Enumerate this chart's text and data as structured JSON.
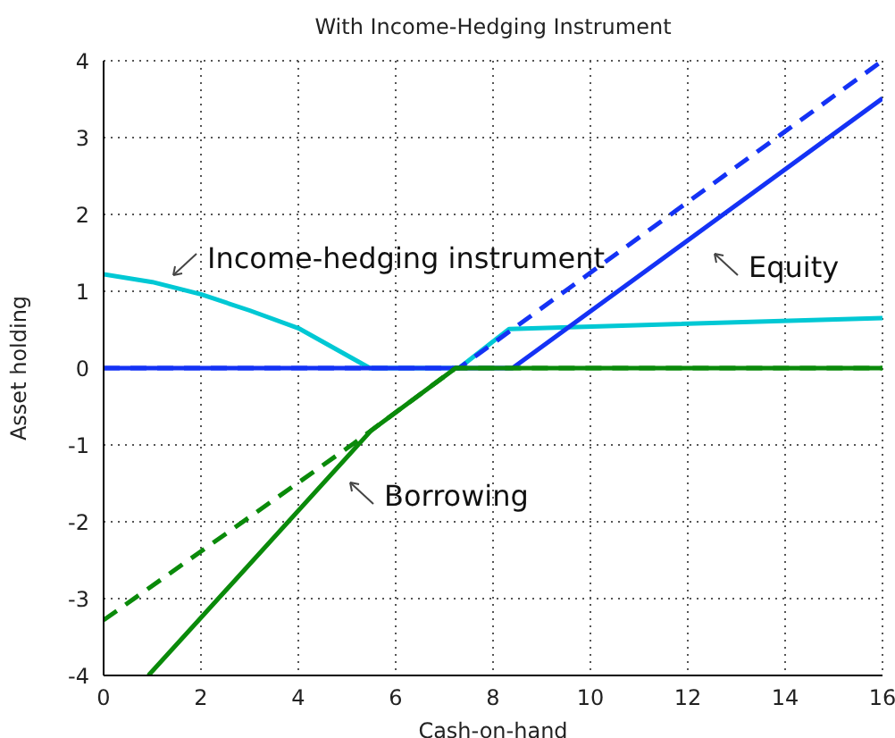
{
  "chart_data": {
    "type": "line",
    "title": "With Income-Hedging Instrument",
    "xlabel": "Cash-on-hand",
    "ylabel": "Asset holding",
    "xlim": [
      0,
      16
    ],
    "ylim": [
      -4,
      4
    ],
    "xticks": [
      0,
      2,
      4,
      6,
      8,
      10,
      12,
      14,
      16
    ],
    "yticks": [
      -4,
      -3,
      -2,
      -1,
      0,
      1,
      2,
      3,
      4
    ],
    "grid": true,
    "marker": "none",
    "series": [
      {
        "color": "#00c8d4",
        "line_style": "solid",
        "x": [
          0,
          1,
          2,
          3,
          4,
          5.47,
          7.3,
          8.33,
          16
        ],
        "values": [
          1.22,
          1.12,
          0.96,
          0.75,
          0.52,
          0,
          0,
          0.51,
          0.65
        ]
      },
      {
        "color": "#1432f5",
        "line_style": "dashed",
        "x": [
          0,
          7.3,
          16
        ],
        "values": [
          0,
          0,
          4.0
        ]
      },
      {
        "color": "#1432f5",
        "line_style": "solid",
        "x": [
          0,
          8.4,
          16
        ],
        "values": [
          0,
          0,
          3.51
        ]
      },
      {
        "color": "#0a8a0a",
        "line_style": "dashed",
        "x": [
          0,
          5.14,
          5.5,
          7.23,
          16
        ],
        "values": [
          -3.28,
          -0.98,
          -0.81,
          0,
          0
        ]
      },
      {
        "color": "#0a8a0a",
        "line_style": "solid",
        "x": [
          0.92,
          5.5,
          7.23,
          16
        ],
        "values": [
          -4,
          -0.81,
          0,
          0
        ]
      }
    ],
    "annotations": [
      "Income-hedging instrument",
      "Equity",
      "Borrowing"
    ]
  }
}
